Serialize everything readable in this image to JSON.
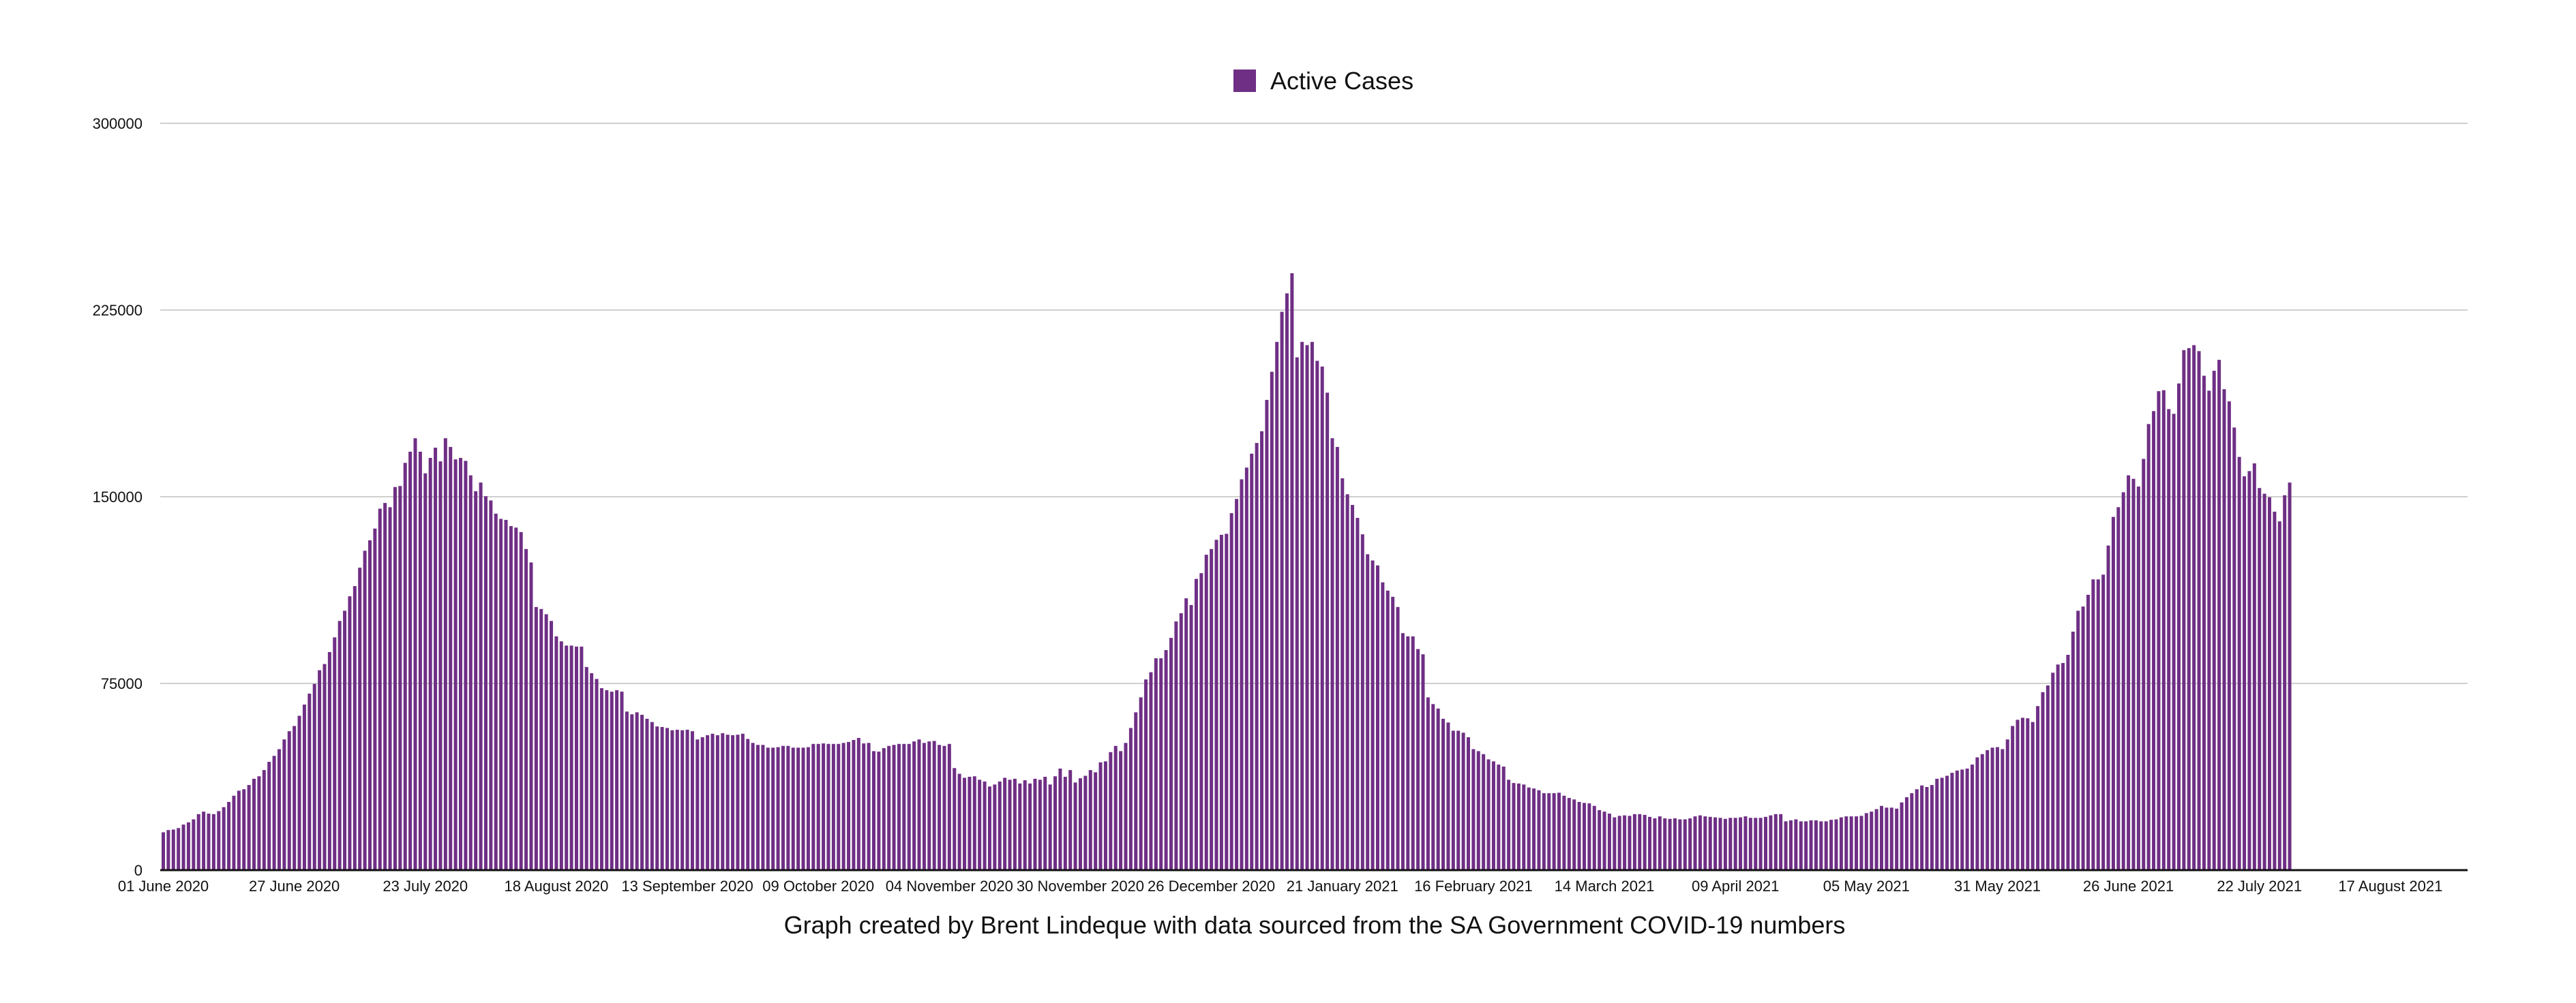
{
  "chart_data": {
    "type": "bar",
    "legend": {
      "label": "Active Cases",
      "position": "top-center"
    },
    "series": [
      {
        "name": "Active Cases",
        "color": "#6f2f85",
        "values": [
          15200,
          16100,
          16300,
          16900,
          18300,
          19200,
          20400,
          22500,
          23500,
          22700,
          22500,
          23700,
          25300,
          27400,
          29900,
          31900,
          32500,
          34200,
          36700,
          37700,
          40200,
          43500,
          45900,
          48600,
          52500,
          55800,
          57900,
          62000,
          66500,
          70900,
          74800,
          80300,
          82800,
          87600,
          93500,
          100100,
          104200,
          110000,
          114100,
          121500,
          128300,
          132500,
          137200,
          145200,
          147500,
          145800,
          153900,
          154300,
          163600,
          168100,
          173500,
          168100,
          159400,
          165600,
          169700,
          164200,
          173500,
          170000,
          165000,
          165600,
          164400,
          158600,
          152200,
          155700,
          150200,
          148500,
          143200,
          141100,
          140700,
          138200,
          137600,
          135800,
          129000,
          123600,
          105700,
          104900,
          102800,
          100100,
          93900,
          91900,
          90200,
          90200,
          89800,
          89800,
          81600,
          79100,
          76800,
          73100,
          72300,
          71700,
          72300,
          71700,
          63700,
          62600,
          63400,
          62400,
          60800,
          59500,
          57700,
          57500,
          57100,
          56200,
          56400,
          56200,
          56400,
          55800,
          52500,
          53400,
          54200,
          54800,
          54200,
          55000,
          54400,
          54200,
          54400,
          54800,
          52700,
          51100,
          50300,
          50300,
          49200,
          49200,
          49400,
          49900,
          49900,
          49200,
          49200,
          49200,
          49400,
          50700,
          50700,
          50900,
          50700,
          50700,
          50700,
          51100,
          51500,
          52300,
          53100,
          50900,
          51100,
          47800,
          47600,
          49000,
          49900,
          50300,
          50700,
          50700,
          50700,
          51700,
          52500,
          51100,
          51700,
          51900,
          50300,
          49900,
          50700,
          41000,
          38700,
          37100,
          37500,
          37700,
          36300,
          35600,
          33600,
          34400,
          35600,
          37100,
          36300,
          36700,
          34800,
          36100,
          34800,
          36700,
          36300,
          37500,
          34400,
          37700,
          40800,
          37500,
          40200,
          35200,
          36900,
          37900,
          40200,
          39300,
          43300,
          43700,
          47400,
          49900,
          47800,
          51100,
          57100,
          63400,
          69400,
          76600,
          79500,
          85100,
          85100,
          88400,
          93300,
          99900,
          103200,
          109200,
          106500,
          117000,
          119300,
          126700,
          129000,
          132700,
          134700,
          135100,
          143400,
          149100,
          157000,
          161700,
          167300,
          171600,
          176300,
          188900,
          200200,
          212200,
          224300,
          231700,
          239800,
          206000,
          212200,
          210900,
          212200,
          204600,
          202300,
          191800,
          173500,
          170000,
          157400,
          151000,
          146700,
          141500,
          134900,
          126900,
          124400,
          122400,
          115600,
          112300,
          109800,
          105700,
          95200,
          93900,
          93900,
          88800,
          86700,
          69400,
          66700,
          64900,
          60800,
          59300,
          56000,
          56000,
          55200,
          53400,
          48600,
          47800,
          46600,
          44500,
          43700,
          42400,
          41600,
          36300,
          35000,
          34800,
          34400,
          33200,
          32800,
          32100,
          30900,
          30900,
          30900,
          31100,
          29900,
          29000,
          28400,
          27400,
          27000,
          26800,
          25800,
          24100,
          23500,
          22700,
          21200,
          21800,
          22000,
          21800,
          22500,
          22500,
          22200,
          21400,
          20800,
          21600,
          20800,
          20600,
          20800,
          20400,
          20400,
          20800,
          21600,
          22000,
          21600,
          21400,
          21200,
          21000,
          20600,
          21000,
          21000,
          21200,
          21600,
          21000,
          21000,
          21000,
          21400,
          22000,
          22500,
          22500,
          19600,
          20000,
          20400,
          19600,
          19600,
          20000,
          20000,
          19600,
          19600,
          20200,
          20400,
          21200,
          21600,
          21600,
          21600,
          21800,
          22900,
          23500,
          24500,
          25800,
          25100,
          25100,
          24700,
          27200,
          29300,
          30900,
          32500,
          34000,
          33400,
          34200,
          36700,
          37100,
          37900,
          39100,
          40000,
          40400,
          40800,
          42400,
          45300,
          46600,
          48200,
          49200,
          49400,
          48600,
          52500,
          57900,
          60400,
          61200,
          61000,
          59500,
          65900,
          71500,
          74200,
          79300,
          82600,
          83200,
          86500,
          95800,
          104200,
          105900,
          110600,
          116800,
          116800,
          118700,
          130400,
          141900,
          145800,
          151800,
          158600,
          157200,
          154100,
          165200,
          179200,
          184400,
          192400,
          192800,
          185200,
          183300,
          195500,
          208900,
          209700,
          210900,
          208500,
          198600,
          192600,
          200600,
          205000,
          193200,
          188300,
          177800,
          166000,
          158200,
          160300,
          163400,
          153500,
          151200,
          149800,
          144000,
          140100,
          150600,
          155700
        ]
      }
    ],
    "x_unit": "days since first bar (daily)",
    "x_range_days": [
      0,
      442
    ],
    "x_ticks": [
      {
        "day": 0,
        "label": "01 June 2020"
      },
      {
        "day": 26,
        "label": "27 June 2020"
      },
      {
        "day": 52,
        "label": "23 July 2020"
      },
      {
        "day": 78,
        "label": "18 August 2020"
      },
      {
        "day": 104,
        "label": "13 September 2020"
      },
      {
        "day": 130,
        "label": "09 October 2020"
      },
      {
        "day": 156,
        "label": "04 November 2020"
      },
      {
        "day": 182,
        "label": "30 November 2020"
      },
      {
        "day": 208,
        "label": "26 December 2020"
      },
      {
        "day": 234,
        "label": "21 January 2021"
      },
      {
        "day": 260,
        "label": "16 February 2021"
      },
      {
        "day": 286,
        "label": "14 March 2021"
      },
      {
        "day": 312,
        "label": "09 April 2021"
      },
      {
        "day": 338,
        "label": "05 May 2021"
      },
      {
        "day": 364,
        "label": "31 May 2021"
      },
      {
        "day": 390,
        "label": "26 June 2021"
      },
      {
        "day": 416,
        "label": "22 July 2021"
      },
      {
        "day": 442,
        "label": "17 August 2021"
      }
    ],
    "y_ticks": [
      {
        "value": 0,
        "label": "0"
      },
      {
        "value": 75000,
        "label": "75000"
      },
      {
        "value": 150000,
        "label": "150000"
      },
      {
        "value": 225000,
        "label": "225000"
      },
      {
        "value": 300000,
        "label": "300000"
      }
    ],
    "ylim": [
      0,
      300000
    ],
    "grid": true,
    "title": "",
    "xlabel": "",
    "ylabel": "",
    "caption": "Graph created by Brent Lindeque with data sourced from the SA Government COVID-19 numbers"
  }
}
